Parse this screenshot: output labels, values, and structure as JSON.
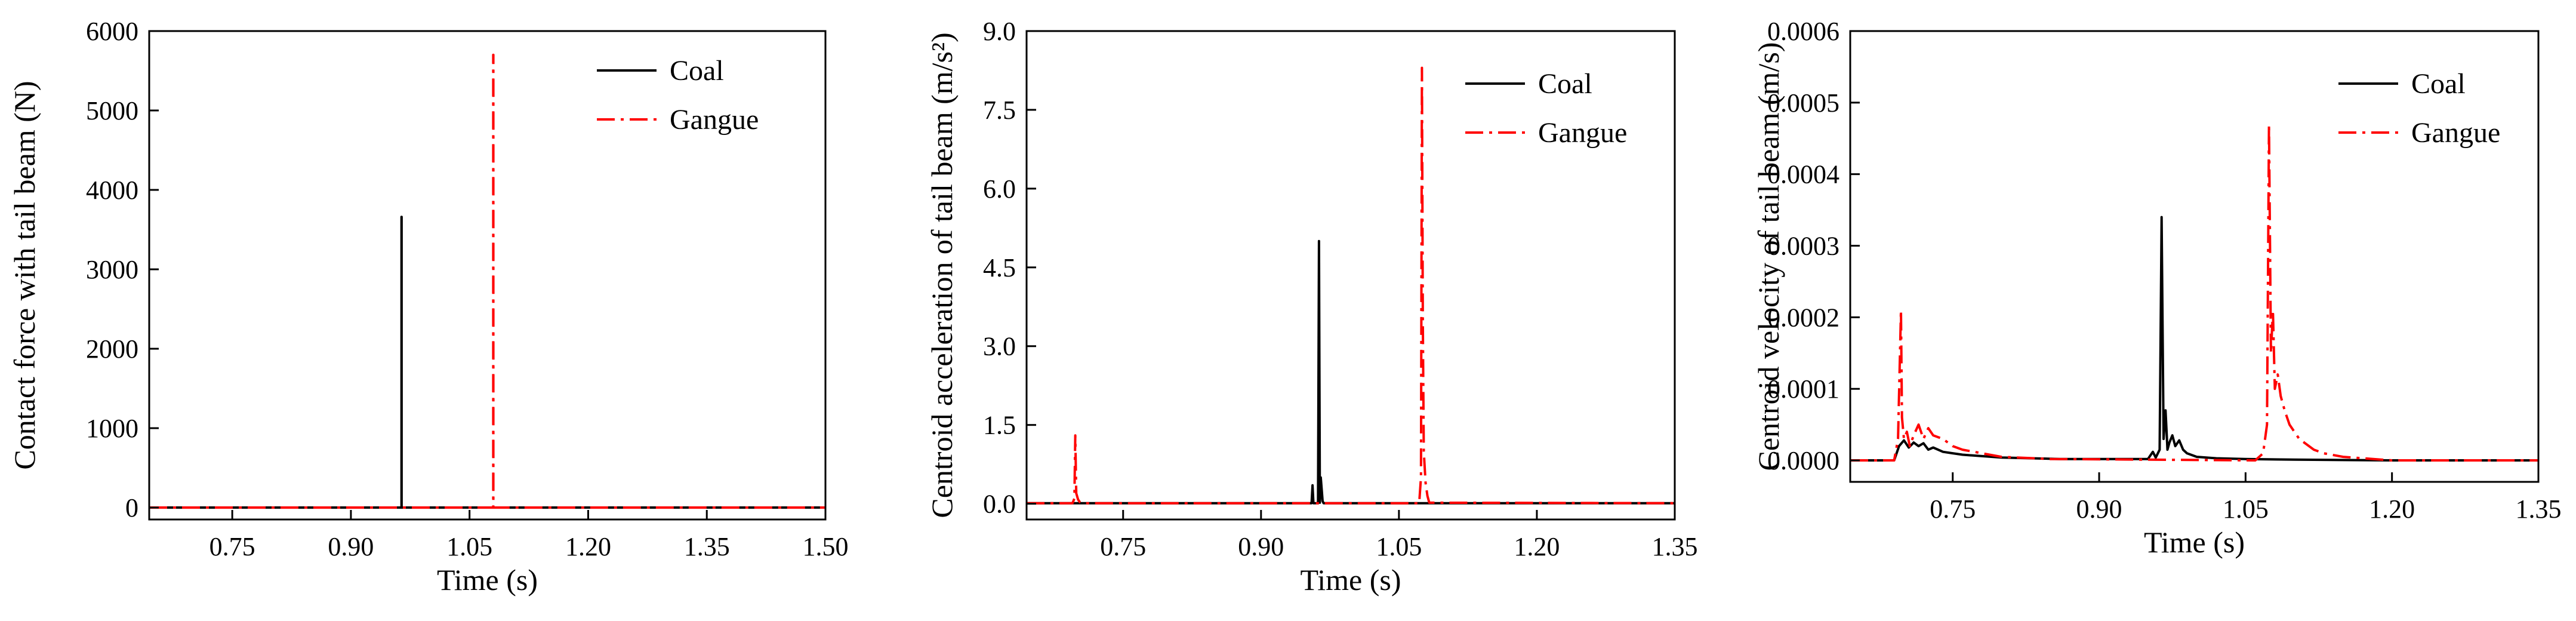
{
  "chart_data": [
    {
      "type": "line",
      "xlabel": "Time (s)",
      "ylabel": "Contact force with tail beam (N)",
      "xlim": [
        0.645,
        1.5
      ],
      "ylim": [
        -150,
        6000
      ],
      "xticks": [
        "0.75",
        "0.90",
        "1.05",
        "1.20",
        "1.35",
        "1.50"
      ],
      "yticks": [
        "0",
        "1000",
        "2000",
        "3000",
        "4000",
        "5000",
        "6000"
      ],
      "legend_position": "top-right",
      "series": [
        {
          "name": "Coal",
          "color": "#000000",
          "dash": "solid",
          "x": [
            0.645,
            0.964,
            0.964,
            0.9641,
            0.9641,
            1.5
          ],
          "y": [
            0,
            0,
            3660,
            3660,
            0,
            0
          ]
        },
        {
          "name": "Gangue",
          "color": "#ff0000",
          "dash": "dashdot",
          "x": [
            0.645,
            1.08,
            1.08,
            1.0801,
            1.0801,
            1.5
          ],
          "y": [
            0,
            0,
            5700,
            5700,
            0,
            0
          ]
        }
      ]
    },
    {
      "type": "line",
      "xlabel": "Time (s)",
      "ylabel": "Centroid acceleration of tail beam (m/s²)",
      "xlim": [
        0.645,
        1.35
      ],
      "ylim": [
        -0.3,
        9.0
      ],
      "xticks": [
        "0.75",
        "0.90",
        "1.05",
        "1.20",
        "1.35"
      ],
      "yticks": [
        "0.0",
        "1.5",
        "3.0",
        "4.5",
        "6.0",
        "7.5",
        "9.0"
      ],
      "legend_position": "top-right",
      "series": [
        {
          "name": "Coal",
          "color": "#000000",
          "dash": "solid",
          "x": [
            0.645,
            0.95,
            0.955,
            0.956,
            0.957,
            0.962,
            0.963,
            0.964,
            0.965,
            0.967,
            0.968,
            0.97,
            1.35
          ],
          "y": [
            0.01,
            0.01,
            0.01,
            0.35,
            0.01,
            0.01,
            5.0,
            0.02,
            0.5,
            0.05,
            0.01,
            0.01,
            0.01
          ]
        },
        {
          "name": "Gangue",
          "color": "#ff0000",
          "dash": "dashdot",
          "x": [
            0.645,
            0.695,
            0.697,
            0.698,
            0.699,
            0.701,
            0.703,
            0.705,
            1.072,
            1.074,
            1.075,
            1.076,
            1.077,
            1.079,
            1.081,
            1.083,
            1.35
          ],
          "y": [
            0.01,
            0.01,
            0.1,
            1.3,
            0.2,
            0.08,
            0.03,
            0.01,
            0.01,
            0.5,
            8.3,
            3.5,
            1.0,
            0.4,
            0.15,
            0.02,
            0.01
          ]
        }
      ]
    },
    {
      "type": "line",
      "xlabel": "Time (s)",
      "ylabel": "Centroid velocity of tail beam (m/s)",
      "xlim": [
        0.645,
        1.35
      ],
      "ylim": [
        -3e-05,
        0.0006
      ],
      "xticks": [
        "0.75",
        "0.90",
        "1.05",
        "1.20",
        "1.35"
      ],
      "yticks": [
        "0.0000",
        "0.0001",
        "0.0002",
        "0.0003",
        "0.0004",
        "0.0005",
        "0.0006"
      ],
      "legend_position": "top-right",
      "series": [
        {
          "name": "Coal",
          "color": "#000000",
          "dash": "solid",
          "x": [
            0.645,
            0.69,
            0.695,
            0.7,
            0.705,
            0.71,
            0.715,
            0.72,
            0.725,
            0.73,
            0.74,
            0.75,
            0.76,
            0.78,
            0.8,
            0.83,
            0.86,
            0.9,
            0.95,
            0.955,
            0.958,
            0.962,
            0.964,
            0.966,
            0.968,
            0.97,
            0.972,
            0.975,
            0.978,
            0.982,
            0.986,
            0.99,
            1.0,
            1.02,
            1.05,
            1.1,
            1.2,
            1.35
          ],
          "y": [
            0.0,
            0.0,
            2e-05,
            2.8e-05,
            1.8e-05,
            2.5e-05,
            2e-05,
            2.4e-05,
            1.5e-05,
            1.8e-05,
            1.2e-05,
            1e-05,
            8e-06,
            6e-06,
            4e-06,
            3e-06,
            2e-06,
            2e-06,
            2e-06,
            1.2e-05,
            4e-06,
            1.5e-05,
            0.00034,
            3e-05,
            7e-05,
            1.5e-05,
            2.5e-05,
            3.5e-05,
            2e-05,
            2.8e-05,
            1.5e-05,
            1e-05,
            5e-06,
            3e-06,
            2e-06,
            1e-06,
            0.0,
            0.0
          ]
        },
        {
          "name": "Gangue",
          "color": "#ff0000",
          "dash": "dashdot",
          "x": [
            0.645,
            0.69,
            0.694,
            0.697,
            0.698,
            0.7,
            0.703,
            0.706,
            0.71,
            0.715,
            0.72,
            0.725,
            0.73,
            0.74,
            0.75,
            0.76,
            0.78,
            0.8,
            0.85,
            1.06,
            1.068,
            1.072,
            1.074,
            1.076,
            1.078,
            1.08,
            1.083,
            1.086,
            1.09,
            1.095,
            1.1,
            1.105,
            1.11,
            1.12,
            1.13,
            1.15,
            1.2,
            1.35
          ],
          "y": [
            0.0,
            0.0,
            3e-05,
            0.00021,
            6e-05,
            3e-05,
            4e-05,
            2e-05,
            3.5e-05,
            5e-05,
            3e-05,
            4.5e-05,
            3.5e-05,
            3e-05,
            2e-05,
            1.5e-05,
            1e-05,
            5e-06,
            2e-06,
            0.0,
            1e-05,
            5e-05,
            0.00047,
            0.00015,
            0.00021,
            0.0001,
            0.00012,
            9e-05,
            7e-05,
            5e-05,
            4e-05,
            3e-05,
            2.5e-05,
            1.5e-05,
            1e-05,
            5e-06,
            0.0,
            0.0
          ]
        }
      ]
    }
  ]
}
